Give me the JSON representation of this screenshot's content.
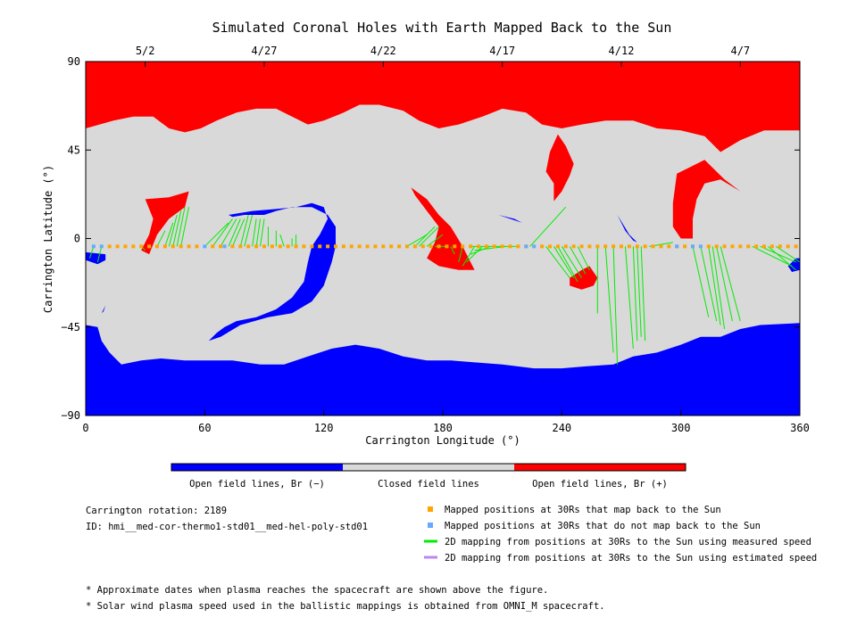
{
  "chart_data": {
    "type": "heatmap",
    "title": "Simulated Coronal Holes with Earth Mapped Back to the Sun",
    "xlabel": "Carrington Longitude (°)",
    "ylabel": "Carrington Latitude (°)",
    "xlim": [
      0,
      360
    ],
    "ylim": [
      -90,
      90
    ],
    "x_ticks": [
      0,
      60,
      120,
      180,
      240,
      300,
      360
    ],
    "y_ticks": [
      -90,
      -45,
      0,
      45,
      90
    ],
    "x_tick_labels": [
      "0",
      "60",
      "120",
      "180",
      "240",
      "300",
      "360"
    ],
    "y_tick_labels": [
      "−90",
      "−45",
      "0",
      "45",
      "90"
    ],
    "top_axis": {
      "ticks": [
        {
          "label": "5/2",
          "lon": 30
        },
        {
          "label": "4/27",
          "lon": 90
        },
        {
          "label": "4/22",
          "lon": 150
        },
        {
          "label": "4/17",
          "lon": 210
        },
        {
          "label": "4/12",
          "lon": 270
        },
        {
          "label": "4/7",
          "lon": 330
        }
      ]
    },
    "colors": {
      "neg": "#0000ff",
      "closed": "#d9d9d9",
      "pos": "#ff0000",
      "mapped": "#ffa500",
      "unmapped": "#66aaff",
      "measured": "#00ee00",
      "estimated": "#bb88ee"
    },
    "colorbar": [
      {
        "label": "Open field lines, Br (−)",
        "color": "#0000ff"
      },
      {
        "label": "Closed field lines",
        "color": "#d9d9d9"
      },
      {
        "label": "Open field lines, Br (+)",
        "color": "#ff0000"
      }
    ],
    "regions": [
      {
        "polarity": "pos",
        "points": [
          [
            0,
            90
          ],
          [
            360,
            90
          ],
          [
            360,
            55
          ],
          [
            342,
            55
          ],
          [
            330,
            50
          ],
          [
            320,
            44
          ],
          [
            312,
            52
          ],
          [
            300,
            55
          ],
          [
            288,
            56
          ],
          [
            276,
            60
          ],
          [
            262,
            60
          ],
          [
            250,
            58
          ],
          [
            240,
            56
          ],
          [
            230,
            58
          ],
          [
            222,
            64
          ],
          [
            210,
            66
          ],
          [
            200,
            62
          ],
          [
            188,
            58
          ],
          [
            178,
            56
          ],
          [
            168,
            60
          ],
          [
            160,
            65
          ],
          [
            148,
            68
          ],
          [
            138,
            68
          ],
          [
            130,
            64
          ],
          [
            120,
            60
          ],
          [
            112,
            58
          ],
          [
            104,
            62
          ],
          [
            96,
            66
          ],
          [
            86,
            66
          ],
          [
            76,
            64
          ],
          [
            66,
            60
          ],
          [
            58,
            56
          ],
          [
            50,
            54
          ],
          [
            42,
            56
          ],
          [
            34,
            62
          ],
          [
            24,
            62
          ],
          [
            14,
            60
          ],
          [
            0,
            56
          ]
        ]
      },
      {
        "polarity": "pos",
        "points": [
          [
            30,
            20
          ],
          [
            42,
            21
          ],
          [
            52,
            24
          ],
          [
            50,
            16
          ],
          [
            42,
            10
          ],
          [
            36,
            2
          ],
          [
            32,
            -8
          ],
          [
            28,
            -6
          ],
          [
            32,
            2
          ],
          [
            34,
            10
          ]
        ]
      },
      {
        "polarity": "pos",
        "points": [
          [
            164,
            26
          ],
          [
            172,
            20
          ],
          [
            178,
            12
          ],
          [
            184,
            6
          ],
          [
            190,
            -4
          ],
          [
            194,
            -12
          ],
          [
            196,
            -16
          ],
          [
            188,
            -16
          ],
          [
            178,
            -14
          ],
          [
            172,
            -10
          ],
          [
            176,
            -2
          ],
          [
            178,
            6
          ],
          [
            172,
            14
          ],
          [
            166,
            22
          ]
        ]
      },
      {
        "polarity": "pos",
        "points": [
          [
            238,
            53
          ],
          [
            242,
            47
          ],
          [
            246,
            38
          ],
          [
            244,
            32
          ],
          [
            240,
            24
          ],
          [
            236,
            19
          ],
          [
            236,
            28
          ],
          [
            232,
            34
          ],
          [
            234,
            44
          ]
        ]
      },
      {
        "polarity": "pos",
        "points": [
          [
            244,
            -20
          ],
          [
            250,
            -16
          ],
          [
            254,
            -14
          ],
          [
            258,
            -20
          ],
          [
            256,
            -24
          ],
          [
            250,
            -26
          ],
          [
            244,
            -24
          ]
        ]
      },
      {
        "polarity": "pos",
        "points": [
          [
            298,
            33
          ],
          [
            304,
            36
          ],
          [
            312,
            40
          ],
          [
            322,
            30
          ],
          [
            330,
            24
          ],
          [
            320,
            30
          ],
          [
            312,
            28
          ],
          [
            308,
            20
          ],
          [
            306,
            10
          ],
          [
            306,
            0
          ],
          [
            300,
            0
          ],
          [
            296,
            6
          ],
          [
            296,
            18
          ]
        ]
      },
      {
        "polarity": "neg",
        "points": [
          [
            0,
            -90
          ],
          [
            360,
            -90
          ],
          [
            360,
            -43
          ],
          [
            340,
            -44
          ],
          [
            330,
            -46
          ],
          [
            320,
            -50
          ],
          [
            310,
            -50
          ],
          [
            300,
            -54
          ],
          [
            288,
            -58
          ],
          [
            276,
            -60
          ],
          [
            266,
            -64
          ],
          [
            252,
            -65
          ],
          [
            240,
            -66
          ],
          [
            226,
            -66
          ],
          [
            210,
            -64
          ],
          [
            196,
            -63
          ],
          [
            184,
            -62
          ],
          [
            172,
            -62
          ],
          [
            160,
            -60
          ],
          [
            148,
            -56
          ],
          [
            136,
            -54
          ],
          [
            124,
            -56
          ],
          [
            112,
            -60
          ],
          [
            100,
            -64
          ],
          [
            88,
            -64
          ],
          [
            74,
            -62
          ],
          [
            62,
            -62
          ],
          [
            50,
            -62
          ],
          [
            38,
            -61
          ],
          [
            28,
            -62
          ],
          [
            18,
            -64
          ],
          [
            12,
            -58
          ],
          [
            8,
            -52
          ],
          [
            6,
            -45
          ],
          [
            0,
            -44
          ]
        ]
      },
      {
        "polarity": "neg",
        "points": [
          [
            72,
            12
          ],
          [
            84,
            14
          ],
          [
            96,
            15
          ],
          [
            106,
            16
          ],
          [
            114,
            18
          ],
          [
            120,
            16
          ],
          [
            122,
            10
          ],
          [
            118,
            2
          ],
          [
            114,
            -4
          ],
          [
            112,
            -12
          ],
          [
            110,
            -22
          ],
          [
            104,
            -30
          ],
          [
            96,
            -36
          ],
          [
            86,
            -40
          ],
          [
            76,
            -42
          ],
          [
            70,
            -45
          ],
          [
            66,
            -48
          ],
          [
            62,
            -52
          ],
          [
            68,
            -50
          ],
          [
            78,
            -44
          ],
          [
            92,
            -40
          ],
          [
            104,
            -38
          ],
          [
            114,
            -32
          ],
          [
            120,
            -24
          ],
          [
            124,
            -12
          ],
          [
            126,
            -4
          ],
          [
            126,
            6
          ],
          [
            122,
            12
          ],
          [
            114,
            16
          ],
          [
            104,
            16
          ],
          [
            96,
            14
          ],
          [
            90,
            12
          ],
          [
            86,
            12
          ],
          [
            80,
            12
          ],
          [
            74,
            11
          ]
        ]
      },
      {
        "polarity": "neg",
        "points": [
          [
            208,
            12
          ],
          [
            220,
            8
          ],
          [
            216,
            10
          ]
        ]
      },
      {
        "polarity": "neg",
        "points": [
          [
            268,
            12
          ],
          [
            274,
            2
          ],
          [
            278,
            -2
          ],
          [
            276,
            -1
          ],
          [
            272,
            4
          ]
        ]
      },
      {
        "polarity": "neg",
        "points": [
          [
            0,
            -7
          ],
          [
            10,
            -8
          ],
          [
            10,
            -11
          ],
          [
            6,
            -13
          ],
          [
            0,
            -11
          ]
        ]
      },
      {
        "polarity": "neg",
        "points": [
          [
            354,
            -14
          ],
          [
            358,
            -10
          ],
          [
            360,
            -10
          ],
          [
            360,
            -16
          ],
          [
            356,
            -17
          ]
        ]
      },
      {
        "polarity": "neg",
        "points": [
          [
            8,
            -38
          ],
          [
            10,
            -34
          ],
          [
            9,
            -37
          ]
        ]
      },
      {
        "polarity": "closed",
        "points": [
          [
            102,
            14
          ],
          [
            104,
            16
          ],
          [
            104,
            12
          ],
          [
            102,
            12
          ]
        ]
      }
    ],
    "mapped_positions": {
      "lat": -4,
      "lon_mapped": [
        12,
        16,
        20,
        24,
        28,
        32,
        36,
        40,
        44,
        48,
        52,
        56,
        64,
        68,
        74,
        78,
        82,
        86,
        90,
        94,
        98,
        102,
        106,
        110,
        114,
        118,
        122,
        126,
        130,
        134,
        138,
        142,
        146,
        150,
        154,
        158,
        162,
        166,
        170,
        174,
        178,
        182,
        186,
        190,
        194,
        198,
        202,
        206,
        210,
        214,
        218,
        222,
        230,
        234,
        238,
        242,
        246,
        250,
        254,
        258,
        262,
        266,
        270,
        274,
        278,
        282,
        286,
        290,
        294,
        298,
        302,
        306,
        314,
        318,
        322,
        326,
        330,
        334,
        338,
        342,
        346,
        350,
        354,
        358
      ],
      "lon_unmapped": [
        4,
        8,
        60,
        70,
        222,
        226,
        298,
        306,
        310
      ]
    },
    "mapping_lines_measured": [
      [
        0,
        -3,
        0,
        -12
      ],
      [
        4,
        -4,
        2,
        -10
      ],
      [
        8,
        -4,
        6,
        -12
      ],
      [
        28,
        -4,
        30,
        -6
      ],
      [
        36,
        -4,
        40,
        4
      ],
      [
        40,
        -4,
        44,
        8
      ],
      [
        42,
        -4,
        46,
        12
      ],
      [
        44,
        -4,
        48,
        14
      ],
      [
        46,
        -4,
        50,
        16
      ],
      [
        48,
        -4,
        52,
        16
      ],
      [
        60,
        -4,
        72,
        8
      ],
      [
        64,
        -4,
        74,
        10
      ],
      [
        68,
        -4,
        76,
        10
      ],
      [
        72,
        -4,
        78,
        10
      ],
      [
        74,
        -4,
        80,
        10
      ],
      [
        78,
        -4,
        82,
        12
      ],
      [
        80,
        -4,
        84,
        12
      ],
      [
        84,
        -4,
        86,
        10
      ],
      [
        86,
        -4,
        88,
        10
      ],
      [
        88,
        -4,
        90,
        10
      ],
      [
        92,
        -4,
        92,
        6
      ],
      [
        96,
        -4,
        96,
        4
      ],
      [
        100,
        -4,
        98,
        2
      ],
      [
        104,
        -4,
        104,
        0
      ],
      [
        106,
        -4,
        106,
        2
      ],
      [
        162,
        -4,
        172,
        2
      ],
      [
        166,
        -4,
        176,
        6
      ],
      [
        168,
        -4,
        178,
        6
      ],
      [
        172,
        -4,
        180,
        2
      ],
      [
        176,
        -4,
        182,
        -4
      ],
      [
        184,
        -4,
        186,
        -8
      ],
      [
        190,
        -4,
        188,
        -12
      ],
      [
        196,
        -4,
        190,
        -14
      ],
      [
        200,
        -4,
        192,
        -12
      ],
      [
        204,
        -4,
        194,
        -8
      ],
      [
        212,
        -4,
        196,
        -6
      ],
      [
        218,
        -4,
        194,
        -4
      ],
      [
        224,
        -4,
        242,
        16
      ],
      [
        232,
        -4,
        244,
        -20
      ],
      [
        236,
        -4,
        246,
        -20
      ],
      [
        238,
        -4,
        248,
        -22
      ],
      [
        240,
        -4,
        250,
        -20
      ],
      [
        244,
        -4,
        252,
        -18
      ],
      [
        248,
        -4,
        254,
        -16
      ],
      [
        258,
        -4,
        258,
        -38
      ],
      [
        262,
        -4,
        266,
        -58
      ],
      [
        266,
        -4,
        268,
        -64
      ],
      [
        272,
        -4,
        276,
        -56
      ],
      [
        276,
        -4,
        278,
        -52
      ],
      [
        278,
        -4,
        280,
        -50
      ],
      [
        280,
        -4,
        282,
        -52
      ],
      [
        284,
        -4,
        296,
        -2
      ],
      [
        306,
        -4,
        314,
        -40
      ],
      [
        310,
        -4,
        318,
        -42
      ],
      [
        314,
        -4,
        320,
        -44
      ],
      [
        316,
        -4,
        322,
        -46
      ],
      [
        318,
        -4,
        326,
        -42
      ],
      [
        320,
        -4,
        330,
        -42
      ],
      [
        336,
        -4,
        356,
        -14
      ],
      [
        340,
        -4,
        358,
        -12
      ],
      [
        344,
        -4,
        358,
        -16
      ],
      [
        348,
        -4,
        360,
        -12
      ]
    ],
    "info": {
      "rotation": "Carrington rotation: 2189",
      "model_id": "ID: hmi__med-cor-thermo1-std01__med-hel-poly-std01"
    },
    "legend": [
      {
        "kind": "mapped",
        "label": "Mapped positions at 30Rs that map back to the Sun"
      },
      {
        "kind": "unmapped",
        "label": "Mapped positions at 30Rs that do not map back to the Sun"
      },
      {
        "kind": "measured",
        "label": "2D mapping from positions at 30Rs to the Sun using measured speed"
      },
      {
        "kind": "estimated",
        "label": "2D mapping from positions at 30Rs to the Sun using estimated speed"
      }
    ],
    "notes": [
      "* Approximate dates when plasma reaches the spacecraft are shown above the figure.",
      "* Solar wind plasma speed used in the ballistic mappings is obtained from OMNI_M spacecraft."
    ]
  }
}
